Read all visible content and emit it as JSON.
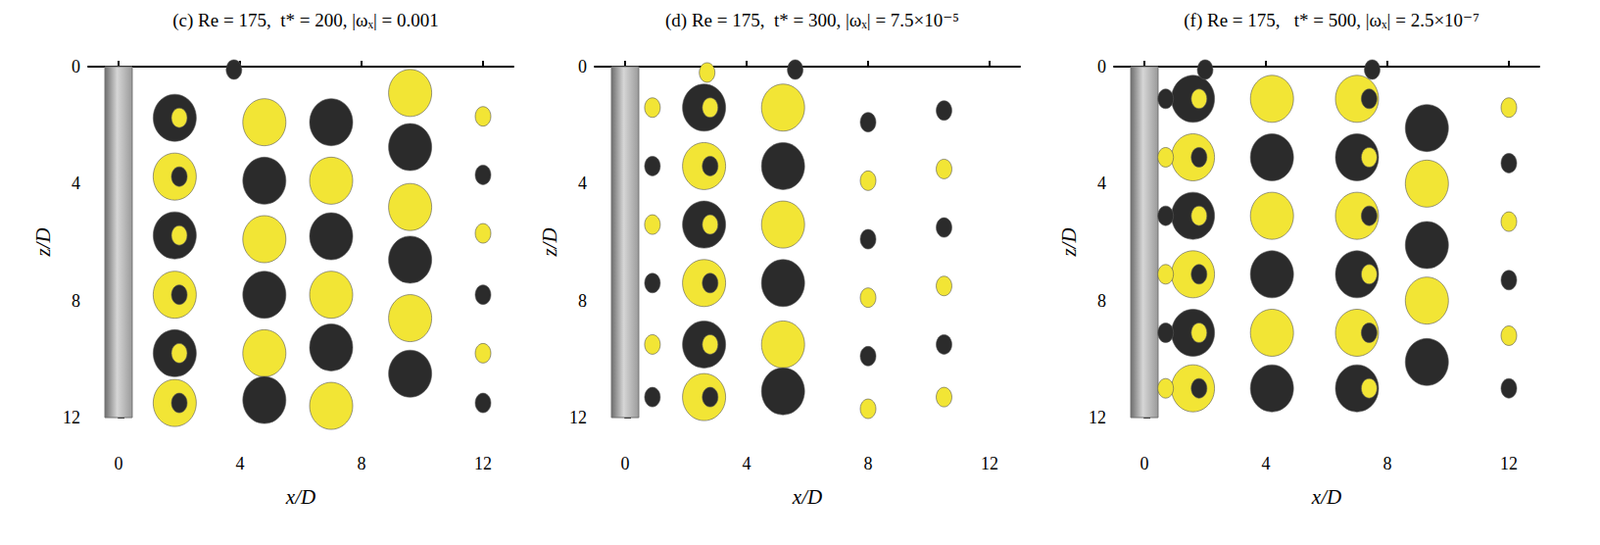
{
  "chart_data": [
    {
      "type": "scatter",
      "title": "(c) Re = 175,  t* = 200, |ωₓ| = 0.001",
      "x_label": "x/D",
      "y_label": "z/D",
      "xlim": [
        -1,
        13
      ],
      "ylim": [
        12,
        0
      ],
      "xticks": [
        0,
        4,
        8,
        12
      ],
      "yticks": [
        0,
        4,
        8,
        12
      ],
      "cylinder": {
        "x": [
          -0.45,
          0.45
        ],
        "z": [
          0,
          12
        ],
        "color": "#9a9a9a"
      },
      "series": [
        {
          "color": "#f2e535",
          "marker": "blob",
          "values": [
            [
              1.85,
              3.76
            ],
            [
              1.85,
              7.8
            ],
            [
              1.85,
              11.5
            ],
            [
              4.8,
              1.9
            ],
            [
              4.8,
              5.9
            ],
            [
              4.8,
              9.8
            ],
            [
              7.0,
              3.9
            ],
            [
              7.0,
              7.8
            ],
            [
              7.0,
              11.6
            ],
            [
              9.6,
              0.9
            ],
            [
              9.6,
              4.8
            ],
            [
              9.6,
              8.6
            ]
          ]
        },
        {
          "color": "#2b2b2b",
          "marker": "blob",
          "values": [
            [
              1.85,
              1.75
            ],
            [
              1.85,
              5.77
            ],
            [
              1.85,
              9.8
            ],
            [
              4.8,
              3.9
            ],
            [
              4.8,
              7.8
            ],
            [
              4.8,
              11.4
            ],
            [
              7.0,
              1.9
            ],
            [
              7.0,
              5.8
            ],
            [
              7.0,
              9.6
            ],
            [
              9.6,
              2.75
            ],
            [
              9.6,
              6.6
            ],
            [
              9.6,
              10.5
            ]
          ]
        },
        {
          "color": "#f2e535",
          "marker": "dot",
          "values": [
            [
              2.0,
              1.75
            ],
            [
              2.0,
              5.77
            ],
            [
              2.0,
              9.8
            ],
            [
              12.0,
              1.7
            ],
            [
              12.0,
              5.7
            ],
            [
              12.0,
              9.8
            ]
          ]
        },
        {
          "color": "#2b2b2b",
          "marker": "dot",
          "values": [
            [
              2.0,
              3.76
            ],
            [
              2.0,
              7.8
            ],
            [
              2.0,
              11.5
            ],
            [
              3.8,
              0.1
            ],
            [
              12.0,
              3.7
            ],
            [
              12.0,
              7.8
            ],
            [
              12.0,
              11.5
            ]
          ]
        }
      ]
    },
    {
      "type": "scatter",
      "title": "(d) Re = 175,  t* = 300, |ωₓ| = 7.5×10⁻⁵",
      "x_label": "x/D",
      "y_label": "z/D",
      "xlim": [
        -1,
        13
      ],
      "ylim": [
        12,
        0
      ],
      "xticks": [
        0,
        4,
        8,
        12
      ],
      "yticks": [
        0,
        4,
        8,
        12
      ],
      "cylinder": {
        "x": [
          -0.45,
          0.45
        ],
        "z": [
          0,
          12
        ],
        "color": "#9a9a9a"
      },
      "series": [
        {
          "color": "#f2e535",
          "marker": "blob",
          "values": [
            [
              2.6,
              3.4
            ],
            [
              2.6,
              7.4
            ],
            [
              2.6,
              11.3
            ],
            [
              5.2,
              1.4
            ],
            [
              5.2,
              5.4
            ],
            [
              5.2,
              9.5
            ]
          ]
        },
        {
          "color": "#2b2b2b",
          "marker": "blob",
          "values": [
            [
              2.6,
              1.4
            ],
            [
              2.6,
              5.4
            ],
            [
              2.6,
              9.5
            ],
            [
              5.2,
              3.4
            ],
            [
              5.2,
              7.4
            ],
            [
              5.2,
              11.1
            ]
          ]
        },
        {
          "color": "#f2e535",
          "marker": "dot",
          "values": [
            [
              2.8,
              1.4
            ],
            [
              2.8,
              5.4
            ],
            [
              2.8,
              9.5
            ],
            [
              0.9,
              1.4
            ],
            [
              0.9,
              5.4
            ],
            [
              0.9,
              9.5
            ],
            [
              2.7,
              0.2
            ],
            [
              8.0,
              3.9
            ],
            [
              8.0,
              7.9
            ],
            [
              8.0,
              11.7
            ],
            [
              10.5,
              3.5
            ],
            [
              10.5,
              7.5
            ],
            [
              10.5,
              11.3
            ]
          ]
        },
        {
          "color": "#2b2b2b",
          "marker": "dot",
          "values": [
            [
              2.8,
              3.4
            ],
            [
              2.8,
              7.4
            ],
            [
              2.8,
              11.3
            ],
            [
              0.9,
              3.4
            ],
            [
              0.9,
              7.4
            ],
            [
              0.9,
              11.3
            ],
            [
              5.6,
              0.1
            ],
            [
              8.0,
              1.9
            ],
            [
              8.0,
              5.9
            ],
            [
              8.0,
              9.9
            ],
            [
              10.5,
              1.5
            ],
            [
              10.5,
              5.5
            ],
            [
              10.5,
              9.5
            ]
          ]
        }
      ]
    },
    {
      "type": "scatter",
      "title": "(f) Re = 175,   t* = 500, |ωₓ| = 2.5×10⁻⁷",
      "x_label": "x/D",
      "y_label": "z/D",
      "xlim": [
        -1,
        13
      ],
      "ylim": [
        12,
        0
      ],
      "xticks": [
        0,
        4,
        8,
        12
      ],
      "yticks": [
        0,
        4,
        8,
        12
      ],
      "cylinder": {
        "x": [
          -0.45,
          0.45
        ],
        "z": [
          0,
          12
        ],
        "color": "#9a9a9a"
      },
      "series": [
        {
          "color": "#f2e535",
          "marker": "blob",
          "values": [
            [
              1.6,
              3.1
            ],
            [
              1.6,
              7.1
            ],
            [
              1.6,
              11.0
            ],
            [
              4.2,
              1.1
            ],
            [
              4.2,
              5.1
            ],
            [
              4.2,
              9.1
            ],
            [
              7.0,
              1.1
            ],
            [
              7.0,
              5.1
            ],
            [
              7.0,
              9.1
            ],
            [
              9.3,
              4.0
            ],
            [
              9.3,
              8.0
            ]
          ]
        },
        {
          "color": "#2b2b2b",
          "marker": "blob",
          "values": [
            [
              1.6,
              1.1
            ],
            [
              1.6,
              5.1
            ],
            [
              1.6,
              9.1
            ],
            [
              4.2,
              3.1
            ],
            [
              4.2,
              7.1
            ],
            [
              4.2,
              11.0
            ],
            [
              7.0,
              3.1
            ],
            [
              7.0,
              7.1
            ],
            [
              7.0,
              11.0
            ],
            [
              9.3,
              2.1
            ],
            [
              9.3,
              6.1
            ],
            [
              9.3,
              10.1
            ]
          ]
        },
        {
          "color": "#f2e535",
          "marker": "dot",
          "values": [
            [
              1.8,
              1.1
            ],
            [
              1.8,
              5.1
            ],
            [
              1.8,
              9.1
            ],
            [
              0.7,
              3.1
            ],
            [
              0.7,
              7.1
            ],
            [
              0.7,
              11.0
            ],
            [
              7.4,
              3.1
            ],
            [
              7.4,
              7.1
            ],
            [
              7.4,
              11.0
            ],
            [
              12.0,
              1.4
            ],
            [
              12.0,
              5.3
            ],
            [
              12.0,
              9.2
            ]
          ]
        },
        {
          "color": "#2b2b2b",
          "marker": "dot",
          "values": [
            [
              1.8,
              3.1
            ],
            [
              1.8,
              7.1
            ],
            [
              1.8,
              11.0
            ],
            [
              0.7,
              1.1
            ],
            [
              0.7,
              5.1
            ],
            [
              0.7,
              9.1
            ],
            [
              7.4,
              1.1
            ],
            [
              7.4,
              5.1
            ],
            [
              7.4,
              9.1
            ],
            [
              2.0,
              0.1
            ],
            [
              7.5,
              0.1
            ],
            [
              12.0,
              3.3
            ],
            [
              12.0,
              7.3
            ],
            [
              12.0,
              11.0
            ]
          ]
        }
      ]
    }
  ]
}
